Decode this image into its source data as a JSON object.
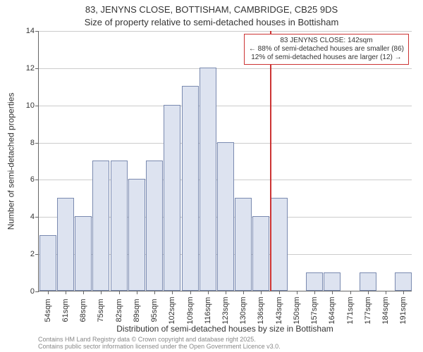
{
  "title_line1": "83, JENYNS CLOSE, BOTTISHAM, CAMBRIDGE, CB25 9DS",
  "title_line2": "Size of property relative to semi-detached houses in Bottisham",
  "ylabel": "Number of semi-detached properties",
  "xlabel": "Distribution of semi-detached houses by size in Bottisham",
  "credit1": "Contains HM Land Registry data © Crown copyright and database right 2025.",
  "credit2": "Contains public sector information licensed under the Open Government Licence v3.0.",
  "chart": {
    "type": "histogram",
    "ymax": 14,
    "ytick_step": 2,
    "bar_fill": "#dde3f0",
    "bar_border": "#7a8ab0",
    "grid_color": "#cccccc",
    "axis_color": "#666666",
    "categories": [
      "54sqm",
      "61sqm",
      "68sqm",
      "75sqm",
      "82sqm",
      "89sqm",
      "95sqm",
      "102sqm",
      "109sqm",
      "116sqm",
      "123sqm",
      "130sqm",
      "136sqm",
      "143sqm",
      "150sqm",
      "157sqm",
      "164sqm",
      "171sqm",
      "177sqm",
      "184sqm",
      "191sqm"
    ],
    "values": [
      3,
      5,
      4,
      7,
      7,
      6,
      7,
      10,
      11,
      12,
      8,
      5,
      4,
      5,
      0,
      1,
      1,
      0,
      1,
      0,
      1
    ],
    "width_ratio": 0.95
  },
  "reference": {
    "x_index": 13,
    "color": "#cc3333",
    "line1": "83 JENYNS CLOSE: 142sqm",
    "line2": "← 88% of semi-detached houses are smaller (86)",
    "line3": "12% of semi-detached houses are larger (12) →"
  }
}
